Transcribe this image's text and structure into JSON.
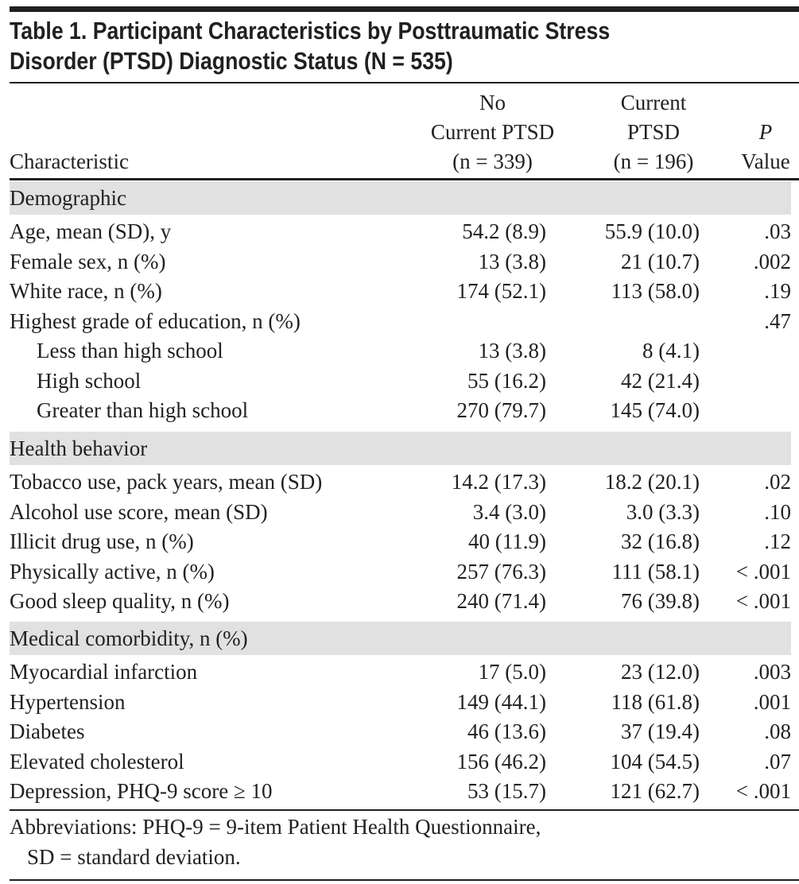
{
  "title": {
    "line1": "Table 1. Participant Characteristics by Posttraumatic Stress",
    "line2": "Disorder (PTSD) Diagnostic Status (N = 535)"
  },
  "header": {
    "characteristic": "Characteristic",
    "col1": [
      "No",
      "Current PTSD",
      "(n = 339)"
    ],
    "col2": [
      "Current",
      "PTSD",
      "(n = 196)"
    ],
    "p": [
      "P",
      "Value"
    ]
  },
  "sections": [
    {
      "label": "Demographic",
      "rows": [
        {
          "label": "Age, mean (SD), y",
          "no_ptsd": "54.2 (8.9)",
          "ptsd": "55.9 (10.0)",
          "p": ".03"
        },
        {
          "label": "Female sex, n (%)",
          "no_ptsd": "13 (3.8)",
          "ptsd": "21 (10.7)",
          "p": ".002"
        },
        {
          "label": "White race, n (%)",
          "no_ptsd": "174 (52.1)",
          "ptsd": "113 (58.0)",
          "p": ".19"
        },
        {
          "label": "Highest grade of education, n (%)",
          "no_ptsd": "",
          "ptsd": "",
          "p": ".47"
        },
        {
          "label": "Less than high school",
          "indent": true,
          "no_ptsd": "13 (3.8)",
          "ptsd": "8 (4.1)",
          "p": ""
        },
        {
          "label": "High school",
          "indent": true,
          "no_ptsd": "55 (16.2)",
          "ptsd": "42 (21.4)",
          "p": ""
        },
        {
          "label": "Greater than high school",
          "indent": true,
          "no_ptsd": "270 (79.7)",
          "ptsd": "145 (74.0)",
          "p": ""
        }
      ]
    },
    {
      "label": "Health behavior",
      "rows": [
        {
          "label": "Tobacco use, pack years, mean (SD)",
          "no_ptsd": "14.2 (17.3)",
          "ptsd": "18.2 (20.1)",
          "p": ".02"
        },
        {
          "label": "Alcohol use score, mean (SD)",
          "no_ptsd": "3.4 (3.0)",
          "ptsd": "3.0 (3.3)",
          "p": ".10"
        },
        {
          "label": "Illicit drug use, n (%)",
          "no_ptsd": "40 (11.9)",
          "ptsd": "32 (16.8)",
          "p": ".12"
        },
        {
          "label": "Physically active, n (%)",
          "no_ptsd": "257 (76.3)",
          "ptsd": "111 (58.1)",
          "p": "< .001"
        },
        {
          "label": "Good sleep quality, n (%)",
          "no_ptsd": "240 (71.4)",
          "ptsd": "76 (39.8)",
          "p": "< .001"
        }
      ]
    },
    {
      "label": "Medical comorbidity, n (%)",
      "rows": [
        {
          "label": "Myocardial infarction",
          "no_ptsd": "17 (5.0)",
          "ptsd": "23 (12.0)",
          "p": ".003"
        },
        {
          "label": "Hypertension",
          "no_ptsd": "149 (44.1)",
          "ptsd": "118 (61.8)",
          "p": ".001"
        },
        {
          "label": "Diabetes",
          "no_ptsd": "46 (13.6)",
          "ptsd": "37 (19.4)",
          "p": ".08"
        },
        {
          "label": "Elevated cholesterol",
          "no_ptsd": "156 (46.2)",
          "ptsd": "104 (54.5)",
          "p": ".07"
        },
        {
          "label": "Depression, PHQ-9 score ≥ 10",
          "no_ptsd": "53 (15.7)",
          "ptsd": "121 (62.7)",
          "p": "< .001"
        }
      ]
    }
  ],
  "footnote": {
    "line1": "Abbreviations: PHQ-9 = 9-item Patient Health Questionnaire,",
    "line2": "SD = standard deviation."
  },
  "colors": {
    "band": "#e1e1e1",
    "text": "#231f20"
  }
}
